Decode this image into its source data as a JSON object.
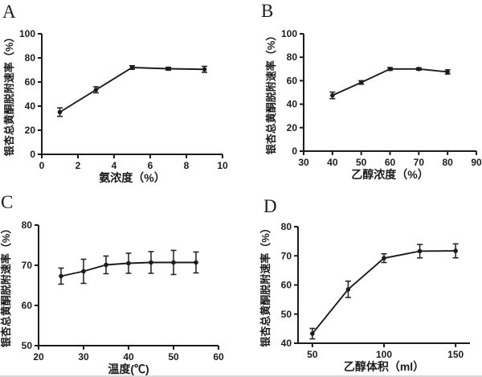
{
  "page": {
    "background": "#ffffff",
    "line_color": "#1c1c1c",
    "border_color": "#d9d9d9"
  },
  "chart_data": [
    {
      "type": "line",
      "panel": "A",
      "title": "",
      "xlabel": "氨浓度（%）",
      "ylabel": "银杏总黄酮脱附速率（%）",
      "xlim": [
        0,
        10
      ],
      "ylim": [
        0,
        100
      ],
      "xticks": [
        0,
        2,
        4,
        6,
        8,
        10
      ],
      "yticks": [
        0,
        20,
        40,
        60,
        80,
        100
      ],
      "x": [
        1,
        3,
        5,
        7,
        9
      ],
      "y": [
        35,
        53.5,
        72,
        71,
        70.5
      ],
      "yerr": [
        3.5,
        2.5,
        1.5,
        1.2,
        2.5
      ],
      "grid": false,
      "legend": "none",
      "marker": "circle"
    },
    {
      "type": "line",
      "panel": "B",
      "title": "",
      "xlabel": "乙醇浓度（%）",
      "ylabel": "银杏总黄酮脱附速率（%）",
      "xlim": [
        30,
        90
      ],
      "ylim": [
        0,
        100
      ],
      "xticks": [
        30,
        40,
        50,
        60,
        70,
        80,
        90
      ],
      "yticks": [
        0,
        20,
        40,
        60,
        80,
        100
      ],
      "x": [
        40,
        50,
        60,
        70,
        80
      ],
      "y": [
        47.5,
        58.5,
        70,
        70,
        67.5
      ],
      "yerr": [
        2.8,
        1.5,
        1.2,
        1.0,
        1.8
      ],
      "grid": false,
      "legend": "none",
      "marker": "circle"
    },
    {
      "type": "line",
      "panel": "C",
      "title": "",
      "xlabel": "温度(℃)",
      "ylabel": "银杏总黄酮脱附速率（%）",
      "xlim": [
        20,
        60
      ],
      "ylim": [
        50,
        80
      ],
      "xticks": [
        20,
        30,
        40,
        50,
        60
      ],
      "yticks": [
        50,
        60,
        70,
        80
      ],
      "x": [
        25,
        30,
        35,
        40,
        45,
        50,
        55
      ],
      "y": [
        67.3,
        68.5,
        70.1,
        70.5,
        70.7,
        70.7,
        70.7
      ],
      "yerr": [
        2.0,
        3.0,
        2.2,
        2.5,
        2.7,
        3.0,
        2.6
      ],
      "grid": false,
      "legend": "none",
      "marker": "circle"
    },
    {
      "type": "line",
      "panel": "D",
      "title": "",
      "xlabel": "乙醇体积（ml）",
      "ylabel": "银杏总黄酮脱附速率（%）",
      "xlim": [
        40,
        160
      ],
      "ylim": [
        40,
        80
      ],
      "xticks": [
        50,
        100,
        150
      ],
      "yticks": [
        40,
        50,
        60,
        70,
        80
      ],
      "x": [
        50,
        75,
        100,
        125,
        150
      ],
      "y": [
        43.3,
        58.5,
        69.2,
        71.6,
        71.7
      ],
      "yerr": [
        1.8,
        2.8,
        1.5,
        2.3,
        2.4
      ],
      "grid": false,
      "legend": "none",
      "marker": "circle"
    }
  ]
}
